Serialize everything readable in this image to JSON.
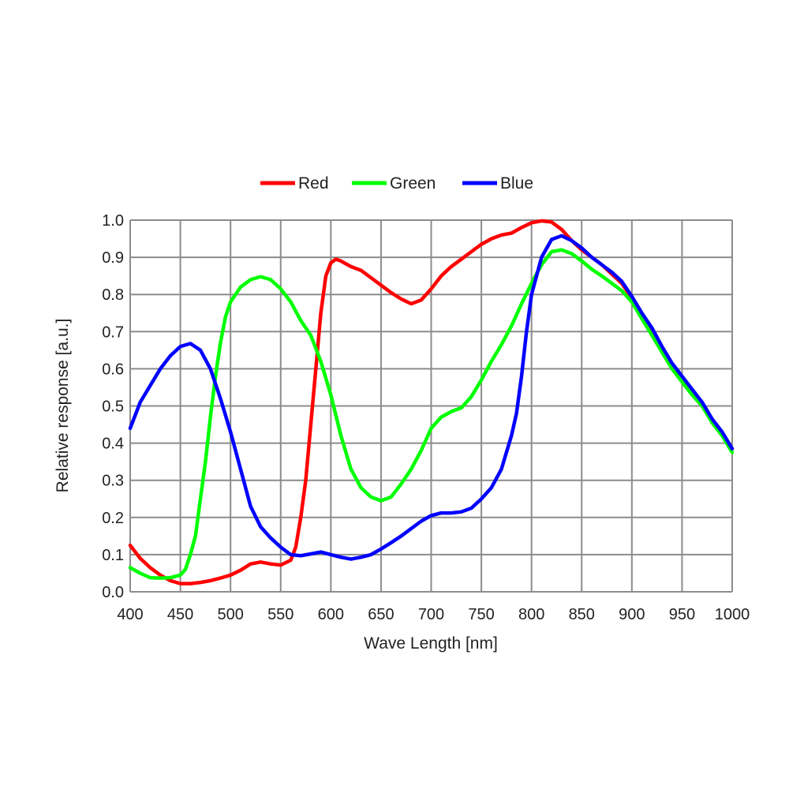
{
  "chart_data": {
    "type": "line",
    "title": "",
    "xlabel": "Wave Length [nm]",
    "ylabel": "Relative response [a.u.]",
    "xlim": [
      400,
      1000
    ],
    "ylim": [
      0,
      1.0
    ],
    "x_ticks": [
      "400",
      "450",
      "500",
      "550",
      "600",
      "650",
      "700",
      "750",
      "800",
      "850",
      "900",
      "950",
      "1000"
    ],
    "y_ticks": [
      "0.0",
      "0.1",
      "0.2",
      "0.3",
      "0.4",
      "0.5",
      "0.6",
      "0.7",
      "0.8",
      "0.9",
      "1.0"
    ],
    "grid": true,
    "legend_placement": "top-center",
    "series": [
      {
        "name": "Red",
        "color": "#ff0000",
        "points": [
          [
            400,
            0.125
          ],
          [
            410,
            0.09
          ],
          [
            420,
            0.065
          ],
          [
            430,
            0.045
          ],
          [
            440,
            0.03
          ],
          [
            450,
            0.022
          ],
          [
            460,
            0.022
          ],
          [
            470,
            0.025
          ],
          [
            480,
            0.03
          ],
          [
            490,
            0.037
          ],
          [
            500,
            0.045
          ],
          [
            510,
            0.058
          ],
          [
            520,
            0.075
          ],
          [
            530,
            0.08
          ],
          [
            540,
            0.075
          ],
          [
            550,
            0.072
          ],
          [
            560,
            0.085
          ],
          [
            565,
            0.12
          ],
          [
            570,
            0.2
          ],
          [
            575,
            0.3
          ],
          [
            580,
            0.45
          ],
          [
            585,
            0.6
          ],
          [
            590,
            0.75
          ],
          [
            595,
            0.85
          ],
          [
            600,
            0.885
          ],
          [
            605,
            0.895
          ],
          [
            610,
            0.89
          ],
          [
            620,
            0.875
          ],
          [
            630,
            0.865
          ],
          [
            640,
            0.845
          ],
          [
            650,
            0.825
          ],
          [
            660,
            0.805
          ],
          [
            670,
            0.788
          ],
          [
            680,
            0.775
          ],
          [
            690,
            0.785
          ],
          [
            700,
            0.815
          ],
          [
            710,
            0.85
          ],
          [
            720,
            0.875
          ],
          [
            730,
            0.895
          ],
          [
            740,
            0.915
          ],
          [
            750,
            0.935
          ],
          [
            760,
            0.95
          ],
          [
            770,
            0.96
          ],
          [
            780,
            0.965
          ],
          [
            790,
            0.98
          ],
          [
            800,
            0.993
          ],
          [
            810,
            0.998
          ],
          [
            820,
            0.995
          ],
          [
            830,
            0.975
          ],
          [
            840,
            0.945
          ],
          [
            850,
            0.92
          ],
          [
            860,
            0.9
          ],
          [
            870,
            0.88
          ],
          [
            880,
            0.855
          ],
          [
            890,
            0.83
          ],
          [
            900,
            0.79
          ],
          [
            910,
            0.745
          ],
          [
            920,
            0.705
          ],
          [
            930,
            0.655
          ],
          [
            940,
            0.61
          ],
          [
            950,
            0.575
          ],
          [
            960,
            0.54
          ],
          [
            970,
            0.5
          ],
          [
            980,
            0.46
          ],
          [
            990,
            0.425
          ],
          [
            1000,
            0.385
          ]
        ]
      },
      {
        "name": "Green",
        "color": "#00ff00",
        "points": [
          [
            400,
            0.065
          ],
          [
            410,
            0.05
          ],
          [
            420,
            0.038
          ],
          [
            430,
            0.037
          ],
          [
            440,
            0.038
          ],
          [
            450,
            0.045
          ],
          [
            455,
            0.06
          ],
          [
            460,
            0.1
          ],
          [
            465,
            0.15
          ],
          [
            470,
            0.25
          ],
          [
            475,
            0.35
          ],
          [
            480,
            0.47
          ],
          [
            485,
            0.58
          ],
          [
            490,
            0.67
          ],
          [
            495,
            0.74
          ],
          [
            500,
            0.78
          ],
          [
            510,
            0.82
          ],
          [
            520,
            0.84
          ],
          [
            530,
            0.848
          ],
          [
            540,
            0.84
          ],
          [
            550,
            0.815
          ],
          [
            560,
            0.78
          ],
          [
            570,
            0.73
          ],
          [
            580,
            0.69
          ],
          [
            590,
            0.62
          ],
          [
            600,
            0.53
          ],
          [
            610,
            0.42
          ],
          [
            620,
            0.33
          ],
          [
            630,
            0.28
          ],
          [
            640,
            0.255
          ],
          [
            650,
            0.245
          ],
          [
            660,
            0.255
          ],
          [
            670,
            0.29
          ],
          [
            680,
            0.33
          ],
          [
            690,
            0.38
          ],
          [
            700,
            0.44
          ],
          [
            710,
            0.47
          ],
          [
            720,
            0.485
          ],
          [
            730,
            0.495
          ],
          [
            740,
            0.525
          ],
          [
            750,
            0.57
          ],
          [
            760,
            0.62
          ],
          [
            770,
            0.665
          ],
          [
            780,
            0.715
          ],
          [
            790,
            0.775
          ],
          [
            800,
            0.83
          ],
          [
            810,
            0.88
          ],
          [
            820,
            0.915
          ],
          [
            830,
            0.92
          ],
          [
            840,
            0.91
          ],
          [
            850,
            0.89
          ],
          [
            860,
            0.868
          ],
          [
            870,
            0.85
          ],
          [
            880,
            0.83
          ],
          [
            890,
            0.81
          ],
          [
            900,
            0.78
          ],
          [
            910,
            0.735
          ],
          [
            920,
            0.69
          ],
          [
            930,
            0.645
          ],
          [
            940,
            0.6
          ],
          [
            950,
            0.565
          ],
          [
            960,
            0.53
          ],
          [
            970,
            0.5
          ],
          [
            980,
            0.455
          ],
          [
            990,
            0.42
          ],
          [
            1000,
            0.375
          ]
        ]
      },
      {
        "name": "Blue",
        "color": "#0000ff",
        "points": [
          [
            400,
            0.44
          ],
          [
            410,
            0.51
          ],
          [
            420,
            0.555
          ],
          [
            430,
            0.6
          ],
          [
            440,
            0.635
          ],
          [
            450,
            0.66
          ],
          [
            460,
            0.668
          ],
          [
            470,
            0.65
          ],
          [
            480,
            0.6
          ],
          [
            490,
            0.52
          ],
          [
            500,
            0.43
          ],
          [
            510,
            0.33
          ],
          [
            520,
            0.23
          ],
          [
            530,
            0.175
          ],
          [
            540,
            0.145
          ],
          [
            550,
            0.12
          ],
          [
            560,
            0.1
          ],
          [
            570,
            0.097
          ],
          [
            580,
            0.102
          ],
          [
            590,
            0.107
          ],
          [
            600,
            0.1
          ],
          [
            610,
            0.093
          ],
          [
            620,
            0.088
          ],
          [
            630,
            0.093
          ],
          [
            640,
            0.1
          ],
          [
            650,
            0.115
          ],
          [
            660,
            0.132
          ],
          [
            670,
            0.15
          ],
          [
            680,
            0.17
          ],
          [
            690,
            0.19
          ],
          [
            700,
            0.205
          ],
          [
            710,
            0.212
          ],
          [
            720,
            0.212
          ],
          [
            730,
            0.215
          ],
          [
            740,
            0.225
          ],
          [
            750,
            0.25
          ],
          [
            760,
            0.28
          ],
          [
            770,
            0.33
          ],
          [
            780,
            0.42
          ],
          [
            785,
            0.48
          ],
          [
            790,
            0.58
          ],
          [
            795,
            0.7
          ],
          [
            800,
            0.8
          ],
          [
            810,
            0.9
          ],
          [
            820,
            0.948
          ],
          [
            830,
            0.958
          ],
          [
            840,
            0.945
          ],
          [
            850,
            0.925
          ],
          [
            860,
            0.9
          ],
          [
            870,
            0.88
          ],
          [
            880,
            0.86
          ],
          [
            890,
            0.835
          ],
          [
            900,
            0.795
          ],
          [
            910,
            0.75
          ],
          [
            920,
            0.71
          ],
          [
            930,
            0.66
          ],
          [
            940,
            0.615
          ],
          [
            950,
            0.58
          ],
          [
            960,
            0.545
          ],
          [
            970,
            0.51
          ],
          [
            980,
            0.465
          ],
          [
            990,
            0.43
          ],
          [
            1000,
            0.385
          ]
        ]
      }
    ]
  }
}
